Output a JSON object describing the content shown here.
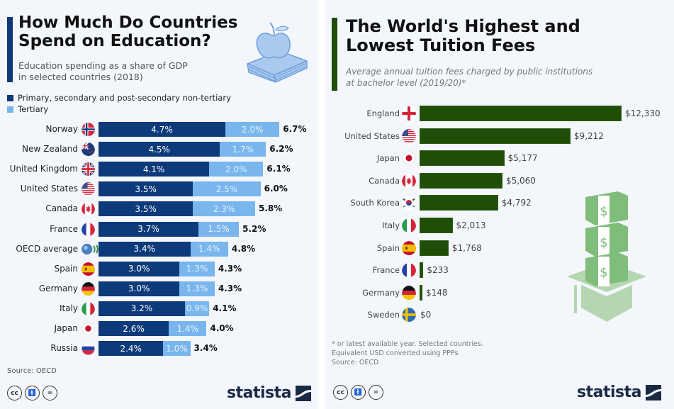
{
  "left_panel": {
    "title_line1": "How Much Do Countries",
    "title_line2": "Spend on Education?",
    "subtitle_line1": "Education spending as a share of GDP",
    "subtitle_line2": "in selected countries (2018)",
    "legend": [
      {
        "label": "Primary, secondary and post-secondary non-tertiary",
        "color": "#0d3a7a"
      },
      {
        "label": "Tertiary",
        "color": "#79b6ee"
      }
    ],
    "illustration_icon": "apple-on-book-icon",
    "source": "Source: OECD",
    "license_icons": [
      "cc-icon",
      "by-icon",
      "nd-icon"
    ],
    "logo_text": "statista"
  },
  "right_panel": {
    "title_line1": "The World's Highest and",
    "title_line2": "Lowest Tuition Fees",
    "subtitle_line1": "Average annual tuition fees charged by public institutions",
    "subtitle_line2": "at bachelor level (2019/20)*",
    "illustration_icon": "money-stacks-graduation-cap-icon",
    "note_line1": "* or latest available year. Selected countries.",
    "note_line2": "Equivalent USD converted using PPPs",
    "source": "Source: OECD",
    "license_icons": [
      "cc-icon",
      "by-icon",
      "nd-icon"
    ],
    "logo_text": "statista"
  },
  "chart_data": [
    {
      "type": "bar",
      "orientation": "horizontal",
      "stacked": true,
      "title": "How Much Do Countries Spend on Education?",
      "subtitle": "Education spending as a share of GDP in selected countries (2018)",
      "unit": "% of GDP",
      "categories": [
        "Norway",
        "New Zealand",
        "United Kingdom",
        "United States",
        "Canada",
        "France",
        "OECD average",
        "Spain",
        "Germany",
        "Italy",
        "Japan",
        "Russia"
      ],
      "flags": [
        "flag-norway-icon",
        "flag-new-zealand-icon",
        "flag-uk-icon",
        "flag-us-icon",
        "flag-canada-icon",
        "flag-france-icon",
        "oecd-logo-icon",
        "flag-spain-icon",
        "flag-germany-icon",
        "flag-italy-icon",
        "flag-japan-icon",
        "flag-russia-icon"
      ],
      "series": [
        {
          "name": "Primary, secondary and post-secondary non-tertiary",
          "color": "#0d3a7a",
          "values": [
            4.7,
            4.5,
            4.1,
            3.5,
            3.5,
            3.7,
            3.4,
            3.0,
            3.0,
            3.2,
            2.6,
            2.4
          ],
          "labels": [
            "4.7%",
            "4.5%",
            "4.1%",
            "3.5%",
            "3.5%",
            "3.7%",
            "3.4%",
            "3.0%",
            "3.0%",
            "3.2%",
            "2.6%",
            "2.4%"
          ]
        },
        {
          "name": "Tertiary",
          "color": "#79b6ee",
          "values": [
            2.0,
            1.7,
            2.0,
            2.5,
            2.3,
            1.5,
            1.4,
            1.3,
            1.3,
            0.9,
            1.4,
            1.0
          ],
          "labels": [
            "2.0%",
            "1.7%",
            "2.0%",
            "2.5%",
            "2.3%",
            "1.5%",
            "1.4%",
            "1.3%",
            "1.3%",
            "0.9%",
            "1.4%",
            "1.0%"
          ]
        }
      ],
      "totals": [
        6.7,
        6.2,
        6.1,
        6.0,
        5.8,
        5.2,
        4.8,
        4.3,
        4.3,
        4.1,
        4.0,
        3.4
      ],
      "total_labels": [
        "6.7%",
        "6.2%",
        "6.1%",
        "6.0%",
        "5.8%",
        "5.2%",
        "4.8%",
        "4.3%",
        "4.3%",
        "4.1%",
        "4.0%",
        "3.4%"
      ],
      "legend": "top-left",
      "grid": false,
      "source": "OECD"
    },
    {
      "type": "bar",
      "orientation": "horizontal",
      "title": "The World's Highest and Lowest Tuition Fees",
      "subtitle": "Average annual tuition fees charged by public institutions at bachelor level (2019/20)*",
      "unit": "USD (PPP)",
      "categories": [
        "England",
        "United States",
        "Japan",
        "Canada",
        "South Korea",
        "Italy",
        "Spain",
        "France",
        "Germany",
        "Sweden"
      ],
      "flags": [
        "flag-england-icon",
        "flag-us-icon",
        "flag-japan-icon",
        "flag-canada-icon",
        "flag-south-korea-icon",
        "flag-italy-icon",
        "flag-spain-icon",
        "flag-france-icon",
        "flag-germany-icon",
        "flag-sweden-icon"
      ],
      "values": [
        12330,
        9212,
        5177,
        5060,
        4792,
        2013,
        1768,
        233,
        148,
        0
      ],
      "value_labels": [
        "$12,330",
        "$9,212",
        "$5,177",
        "$5,060",
        "$4,792",
        "$2,013",
        "$1,768",
        "$233",
        "$148",
        "$0"
      ],
      "color": "#1f4e08",
      "grid": false,
      "source": "OECD"
    }
  ]
}
